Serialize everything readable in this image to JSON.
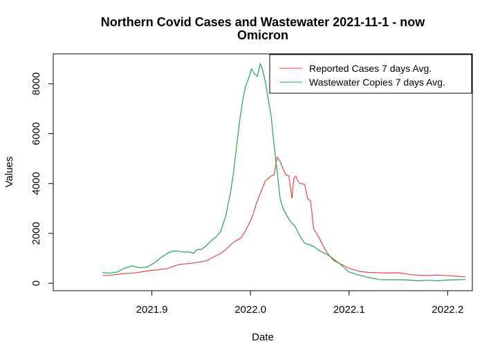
{
  "chart_data": {
    "type": "line",
    "title": "Northern Covid Cases and Wastewater 2021-11-1 - now",
    "subtitle": "Omicron",
    "xlabel": "Date",
    "ylabel": "Values",
    "xlim": [
      2021.8,
      2022.225
    ],
    "ylim": [
      -300,
      9200
    ],
    "xticks": [
      2021.9,
      2022.0,
      2022.1,
      2022.2
    ],
    "xtick_labels": [
      "2021.9",
      "2022.0",
      "2022.1",
      "2022.2"
    ],
    "yticks": [
      0,
      2000,
      4000,
      6000,
      8000
    ],
    "ytick_labels": [
      "0",
      "2000",
      "4000",
      "6000",
      "8000"
    ],
    "grid": false,
    "legend_position": "top-right",
    "series": [
      {
        "name": "Reported Cases 7 days Avg.",
        "color": "#E0474C",
        "x": [
          2021.85,
          2021.86,
          2021.87,
          2021.88,
          2021.89,
          2021.9,
          2021.905,
          2021.91,
          2021.915,
          2021.92,
          2021.925,
          2021.93,
          2021.94,
          2021.95,
          2021.955,
          2021.96,
          2021.965,
          2021.97,
          2021.975,
          2021.98,
          2021.985,
          2021.99,
          2021.995,
          2022.0,
          2022.003,
          2022.006,
          2022.009,
          2022.012,
          2022.015,
          2022.018,
          2022.021,
          2022.024,
          2022.027,
          2022.03,
          2022.033,
          2022.036,
          2022.039,
          2022.042,
          2022.044,
          2022.046,
          2022.048,
          2022.05,
          2022.052,
          2022.055,
          2022.058,
          2022.061,
          2022.064,
          2022.067,
          2022.07,
          2022.075,
          2022.08,
          2022.085,
          2022.09,
          2022.1,
          2022.11,
          2022.12,
          2022.13,
          2022.14,
          2022.15,
          2022.16,
          2022.17,
          2022.18,
          2022.19,
          2022.2,
          2022.21,
          2022.218
        ],
        "values": [
          300,
          330,
          380,
          400,
          460,
          520,
          530,
          560,
          580,
          650,
          720,
          760,
          800,
          860,
          900,
          1000,
          1100,
          1200,
          1350,
          1550,
          1700,
          1800,
          2100,
          2500,
          2800,
          3200,
          3500,
          3800,
          4100,
          4200,
          4300,
          4350,
          5050,
          4900,
          4600,
          4350,
          4300,
          3400,
          4200,
          4300,
          4100,
          4000,
          4000,
          3950,
          3400,
          3300,
          2200,
          2000,
          1800,
          1400,
          1100,
          900,
          800,
          600,
          480,
          430,
          420,
          410,
          420,
          360,
          320,
          310,
          330,
          300,
          280,
          260
        ]
      },
      {
        "name": "Wastewater Copies 7 days Avg.",
        "color": "#1FA64A",
        "x": [
          2021.85,
          2021.857,
          2021.865,
          2021.872,
          2021.88,
          2021.887,
          2021.895,
          2021.902,
          2021.91,
          2021.918,
          2021.925,
          2021.932,
          2021.938,
          2021.942,
          2021.946,
          2021.95,
          2021.955,
          2021.96,
          2021.965,
          2021.97,
          2021.975,
          2021.98,
          2021.983,
          2021.986,
          2021.989,
          2021.992,
          2021.995,
          2021.998,
          2022.001,
          2022.004,
          2022.007,
          2022.01,
          2022.012,
          2022.015,
          2022.018,
          2022.021,
          2022.024,
          2022.027,
          2022.03,
          2022.033,
          2022.037,
          2022.041,
          2022.045,
          2022.05,
          2022.055,
          2022.06,
          2022.065,
          2022.07,
          2022.08,
          2022.09,
          2022.1,
          2022.11,
          2022.12,
          2022.13,
          2022.14,
          2022.15,
          2022.16,
          2022.17,
          2022.18,
          2022.19,
          2022.2,
          2022.21,
          2022.218
        ],
        "values": [
          430,
          400,
          450,
          600,
          700,
          620,
          650,
          800,
          1050,
          1250,
          1300,
          1250,
          1250,
          1200,
          1350,
          1350,
          1500,
          1700,
          1850,
          2100,
          2700,
          3700,
          4500,
          5500,
          6500,
          7300,
          7900,
          8200,
          8600,
          8400,
          8300,
          8800,
          8600,
          8100,
          7400,
          6700,
          5500,
          4500,
          3400,
          3000,
          2700,
          2450,
          2300,
          1900,
          1600,
          1550,
          1450,
          1300,
          1100,
          800,
          450,
          330,
          230,
          150,
          140,
          140,
          130,
          100,
          120,
          100,
          130,
          140,
          150
        ]
      }
    ]
  }
}
